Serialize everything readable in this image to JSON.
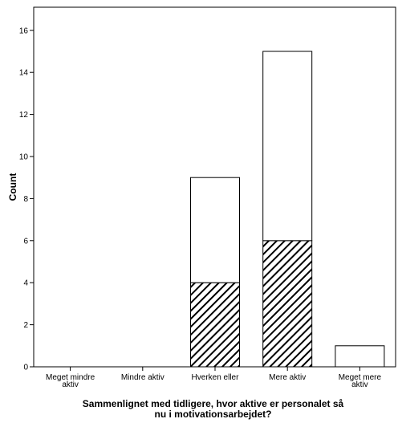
{
  "chart_data": {
    "type": "bar",
    "stacked": true,
    "categories": [
      [
        "Meget mindre",
        "aktiv"
      ],
      [
        "Mindre aktiv"
      ],
      [
        "Hverken eller"
      ],
      [
        "Mere aktiv"
      ],
      [
        "Meget mere",
        "aktiv"
      ]
    ],
    "series": [
      {
        "fill": "hatched",
        "values": [
          0,
          0,
          4,
          6,
          0
        ]
      },
      {
        "fill": "white",
        "values": [
          0,
          0,
          5,
          9,
          1
        ]
      }
    ],
    "totals": [
      0,
      0,
      9,
      15,
      1
    ],
    "ylabel": "Count",
    "xlabel": [
      "Sammenlignet med tidligere, hvor aktive er personalet så",
      "nu i motivationsarbejdet?"
    ],
    "ylim": [
      0,
      16.8
    ],
    "yticks": [
      0,
      2,
      4,
      6,
      8,
      10,
      12,
      14,
      16
    ],
    "grid": false,
    "legend": "none",
    "colors": {
      "bar_fill": "#ffffff",
      "hatch": "#000000",
      "stroke": "#000000"
    }
  }
}
